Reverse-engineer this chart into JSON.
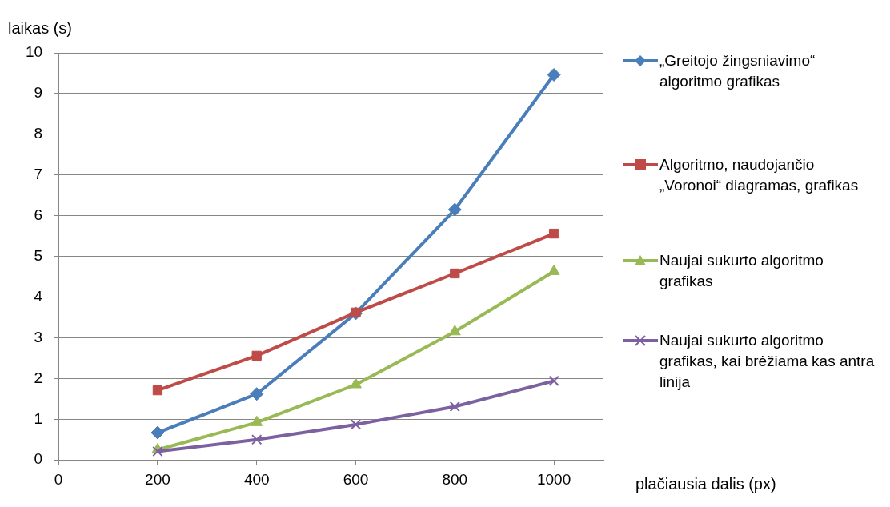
{
  "chart_data": {
    "type": "line",
    "xlabel": "plačiausia dalis (px)",
    "ylabel": "laikas (s)",
    "x": [
      200,
      400,
      600,
      800,
      1000
    ],
    "xlim": [
      0,
      1100
    ],
    "xticks": [
      0,
      200,
      400,
      600,
      800,
      1000
    ],
    "ylim": [
      0,
      10
    ],
    "yticks": [
      0,
      1,
      2,
      3,
      4,
      5,
      6,
      7,
      8,
      9,
      10
    ],
    "grid": "y",
    "legend": "right",
    "series": [
      {
        "name": "„Greitojo žingsniavimo“ algoritmo grafikas",
        "color": "#4a7ebb",
        "marker": "diamond",
        "values": [
          0.67,
          1.62,
          3.6,
          6.15,
          9.46
        ]
      },
      {
        "name": "Algoritmo, naudojančio „Voronoi“ diagramas, grafikas",
        "color": "#be4b48",
        "marker": "square",
        "values": [
          1.71,
          2.56,
          3.62,
          4.58,
          5.56
        ]
      },
      {
        "name": "Naujai sukurto algoritmo grafikas",
        "color": "#98b954",
        "marker": "triangle",
        "values": [
          0.25,
          0.92,
          1.85,
          3.15,
          4.63
        ]
      },
      {
        "name": "Naujai sukurto algoritmo grafikas, kai brėžiama kas antra linija",
        "color": "#7d60a0",
        "marker": "cross",
        "values": [
          0.21,
          0.5,
          0.87,
          1.31,
          1.94
        ]
      }
    ]
  }
}
